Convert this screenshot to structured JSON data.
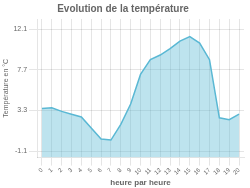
{
  "chart_data": {
    "type": "area",
    "title": "Evolution de la température",
    "xlabel": "heure par heure",
    "ylabel": "Température en °C",
    "x": [
      0,
      1,
      2,
      3,
      4,
      5,
      6,
      7,
      8,
      9,
      10,
      11,
      12,
      13,
      14,
      15,
      16,
      17,
      18,
      19,
      20
    ],
    "values": [
      3.5,
      3.6,
      3.2,
      2.9,
      2.6,
      1.4,
      0.2,
      0.1,
      1.8,
      4.0,
      7.2,
      8.8,
      9.3,
      10.0,
      10.8,
      11.3,
      10.6,
      8.8,
      2.5,
      2.3,
      2.9
    ],
    "color": "#5ab8d4",
    "xlim": [
      -0.5,
      20.5
    ],
    "xticks": [
      0,
      1,
      2,
      3,
      4,
      5,
      6,
      7,
      8,
      9,
      10,
      11,
      12,
      13,
      14,
      15,
      16,
      17,
      18,
      19,
      20
    ],
    "ylim": [
      -1.8,
      13.2
    ],
    "yticks": [
      -1.1,
      3.3,
      7.7,
      12.1
    ],
    "grid": true
  }
}
